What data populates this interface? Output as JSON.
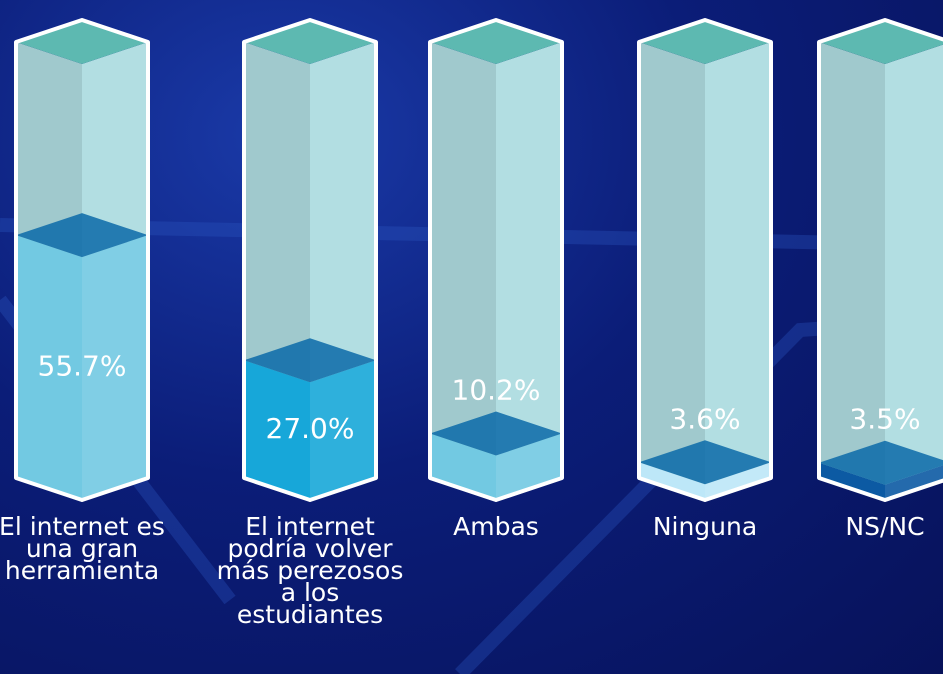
{
  "chart_data": {
    "type": "bar",
    "categories": [
      "El internet es una gran herramienta",
      "El internet podría volver más perezosos a los estudiantes",
      "Ambas",
      "Ninguna",
      "NS/NC"
    ],
    "values": [
      55.7,
      27.0,
      10.2,
      3.6,
      3.5
    ],
    "value_labels": [
      "55.7%",
      "27.0%",
      "10.2%",
      "3.6%",
      "3.5%"
    ],
    "colors": [
      "#72c9e2",
      "#17a7d9",
      "#72c9e2",
      "#bde7f8",
      "#0c5aa3"
    ],
    "label_colors": [
      "#ffffff",
      "#ffffff",
      "#ffffff",
      "#0b3b86",
      "#ffffff"
    ],
    "ylim": [
      0,
      100
    ]
  }
}
